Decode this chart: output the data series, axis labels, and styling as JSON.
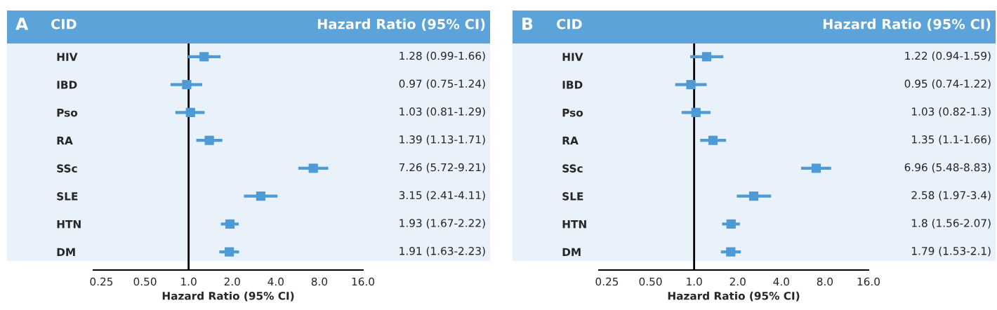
{
  "chart_data": [
    {
      "type": "scatter",
      "orientation": "horizontal",
      "title": "A",
      "xlabel": "Hazard Ratio (95% CI)",
      "annotations": [
        "CID",
        "Hazard Ratio (95% CI)"
      ],
      "categories": [
        "HIV",
        "IBD",
        "Pso",
        "RA",
        "SSc",
        "SLE",
        "HTN",
        "DM"
      ],
      "series": [
        {
          "color": "#4d9ad4",
          "values": [
            1.28,
            0.97,
            1.03,
            1.39,
            7.26,
            3.15,
            1.93,
            1.91
          ],
          "errors": [
            [
              0.99,
              1.66
            ],
            [
              0.75,
              1.24
            ],
            [
              0.81,
              1.29
            ],
            [
              1.13,
              1.71
            ],
            [
              5.72,
              9.21
            ],
            [
              2.41,
              4.11
            ],
            [
              1.67,
              2.22
            ],
            [
              1.63,
              2.23
            ]
          ],
          "value_labels": [
            "1.28 (0.99-1.66)",
            "0.97 (0.75-1.24)",
            "1.03 (0.81-1.29)",
            "1.39 (1.13-1.71)",
            "7.26 (5.72-9.21)",
            "3.15 (2.41-4.11)",
            "1.93 (1.67-2.22)",
            "1.91 (1.63-2.23)"
          ]
        }
      ],
      "log": "x",
      "xlim": [
        0.22,
        16
      ],
      "xticks": [
        {
          "value": 0.25,
          "label": "0.25"
        },
        {
          "value": 0.5,
          "label": "0.50"
        },
        {
          "value": 1,
          "label": "1.0"
        },
        {
          "value": 2,
          "label": "2.0"
        },
        {
          "value": 4,
          "label": "4.0"
        },
        {
          "value": 8,
          "label": "8.0"
        },
        {
          "value": 16,
          "label": "16.0"
        }
      ],
      "ref_lines": [
        {
          "axis": "x",
          "value": 1,
          "color": "#000000"
        }
      ],
      "marker": "square",
      "grid": false
    },
    {
      "type": "scatter",
      "orientation": "horizontal",
      "title": "B",
      "xlabel": "Hazard Ratio (95% CI)",
      "annotations": [
        "CID",
        "Hazard Ratio (95% CI)"
      ],
      "categories": [
        "HIV",
        "IBD",
        "Pso",
        "RA",
        "SSc",
        "SLE",
        "HTN",
        "DM"
      ],
      "series": [
        {
          "color": "#4d9ad4",
          "values": [
            1.22,
            0.95,
            1.03,
            1.35,
            6.96,
            2.58,
            1.8,
            1.79
          ],
          "errors": [
            [
              0.94,
              1.59
            ],
            [
              0.74,
              1.22
            ],
            [
              0.82,
              1.3
            ],
            [
              1.1,
              1.66
            ],
            [
              5.48,
              8.83
            ],
            [
              1.97,
              3.4
            ],
            [
              1.56,
              2.07
            ],
            [
              1.53,
              2.1
            ]
          ],
          "value_labels": [
            "1.22 (0.94-1.59)",
            "0.95 (0.74-1.22)",
            "1.03 (0.82-1.3)",
            "1.35 (1.1-1.66)",
            "6.96 (5.48-8.83)",
            "2.58 (1.97-3.4)",
            "1.8 (1.56-2.07)",
            "1.79 (1.53-2.1)"
          ]
        }
      ],
      "log": "x",
      "xlim": [
        0.22,
        16
      ],
      "xticks": [
        {
          "value": 0.25,
          "label": "0.25"
        },
        {
          "value": 0.5,
          "label": "0.50"
        },
        {
          "value": 1,
          "label": "1.0"
        },
        {
          "value": 2,
          "label": "2.0"
        },
        {
          "value": 4,
          "label": "4.0"
        },
        {
          "value": 8,
          "label": "8.0"
        },
        {
          "value": 16,
          "label": "16.0"
        }
      ],
      "ref_lines": [
        {
          "axis": "x",
          "value": 1,
          "color": "#000000"
        }
      ],
      "marker": "square",
      "grid": false
    }
  ]
}
